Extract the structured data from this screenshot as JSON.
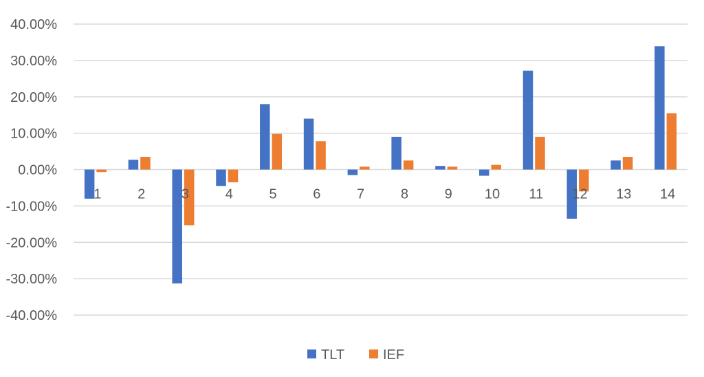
{
  "chart_data": {
    "type": "bar",
    "categories": [
      "1",
      "2",
      "3",
      "4",
      "5",
      "6",
      "7",
      "8",
      "9",
      "10",
      "11",
      "12",
      "13",
      "14"
    ],
    "series": [
      {
        "name": "TLT",
        "color": "#4472c4",
        "values": [
          -8.0,
          2.7,
          -31.3,
          -4.5,
          18.0,
          14.0,
          -1.5,
          9.0,
          1.0,
          -1.7,
          27.2,
          -13.5,
          2.5,
          33.9
        ]
      },
      {
        "name": "IEF",
        "color": "#ed7d31",
        "values": [
          -0.7,
          3.5,
          -15.3,
          -3.5,
          9.8,
          7.8,
          0.8,
          2.5,
          0.8,
          1.3,
          9.0,
          -6.0,
          3.5,
          15.5
        ]
      }
    ],
    "y_ticks": [
      "40.00%",
      "30.00%",
      "20.00%",
      "10.00%",
      "0.00%",
      "-10.00%",
      "-20.00%",
      "-30.00%",
      "-40.00%"
    ],
    "ylim": [
      -40,
      40
    ],
    "grid": true,
    "legend_position": "bottom",
    "title": "",
    "xlabel": "",
    "ylabel": ""
  }
}
